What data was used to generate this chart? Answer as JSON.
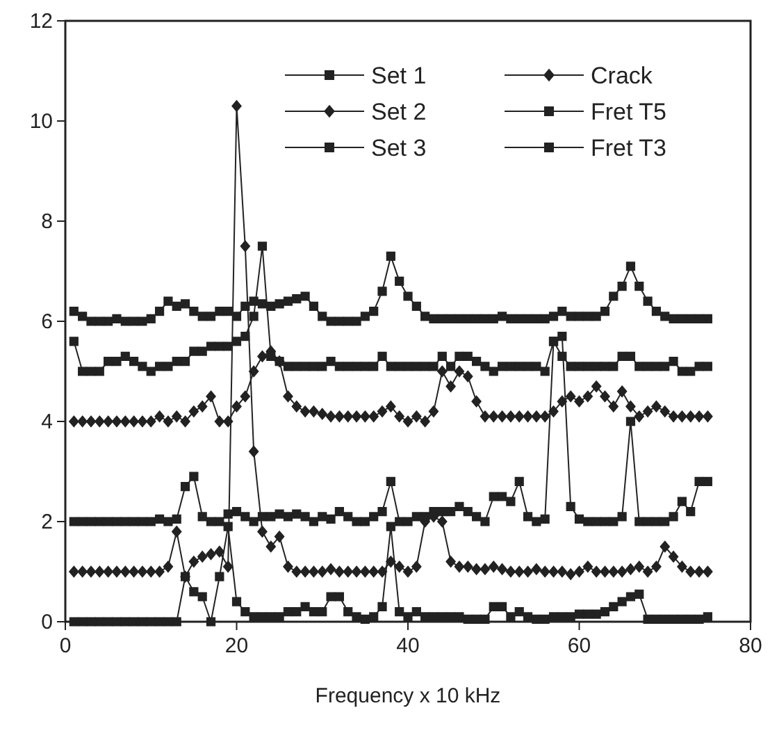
{
  "chart_data": {
    "type": "line",
    "xlabel": "Frequency x 10 kHz",
    "x": [
      1,
      2,
      3,
      4,
      5,
      6,
      7,
      8,
      9,
      10,
      11,
      12,
      13,
      14,
      15,
      16,
      17,
      18,
      19,
      20,
      21,
      22,
      23,
      24,
      25,
      26,
      27,
      28,
      29,
      30,
      31,
      32,
      33,
      34,
      35,
      36,
      37,
      38,
      39,
      40,
      41,
      42,
      43,
      44,
      45,
      46,
      47,
      48,
      49,
      50,
      51,
      52,
      53,
      54,
      55,
      56,
      57,
      58,
      59,
      60,
      61,
      62,
      63,
      64,
      65,
      66,
      67,
      68,
      69,
      70,
      71,
      72,
      73,
      74,
      75
    ],
    "xlim": [
      0,
      80
    ],
    "xticks": [
      0,
      20,
      40,
      60,
      80
    ],
    "ylim": [
      0,
      12
    ],
    "yticks": [
      0,
      2,
      4,
      6,
      8,
      10,
      12
    ],
    "legend": "top right",
    "line_style": "solid",
    "series": [
      {
        "name": "Set 1",
        "color": "#222222",
        "marker": "square",
        "values": [
          0,
          0,
          0,
          0,
          0,
          0,
          0,
          0,
          0,
          0,
          0,
          0,
          0,
          0.9,
          0.6,
          0.5,
          0,
          0.9,
          1.9,
          0.4,
          0.2,
          0.1,
          0.1,
          0.1,
          0.1,
          0.2,
          0.2,
          0.3,
          0.2,
          0.2,
          0.5,
          0.5,
          0.2,
          0.1,
          0.05,
          0.1,
          0.3,
          1.9,
          0.2,
          0.1,
          0.2,
          0.1,
          0.1,
          0.1,
          0.1,
          0.1,
          0.05,
          0.05,
          0.05,
          0.3,
          0.3,
          0.1,
          0.2,
          0.1,
          0.05,
          0.05,
          0.1,
          0.1,
          0.1,
          0.15,
          0.15,
          0.15,
          0.2,
          0.3,
          0.4,
          0.5,
          0.55,
          0.05,
          0.05,
          0.05,
          0.05,
          0.05,
          0.05,
          0.05,
          0.1
        ]
      },
      {
        "name": "Set 2",
        "color": "#222222",
        "marker": "diamond",
        "values": [
          1,
          1,
          1,
          1,
          1,
          1,
          1,
          1,
          1,
          1,
          1,
          1.1,
          1.8,
          0.9,
          1.2,
          1.3,
          1.35,
          1.4,
          1.1,
          10.3,
          7.5,
          3.4,
          1.8,
          1.5,
          1.7,
          1.1,
          1,
          1,
          1,
          1,
          1.05,
          1,
          1,
          1,
          1,
          1,
          1,
          1.2,
          1.1,
          1,
          1.1,
          2,
          2.1,
          2,
          1.2,
          1.1,
          1.1,
          1.05,
          1.05,
          1.1,
          1.05,
          1,
          1,
          1,
          1.05,
          1,
          1,
          1,
          0.95,
          1,
          1.1,
          1,
          1,
          1,
          1,
          1.05,
          1.1,
          1,
          1.1,
          1.5,
          1.3,
          1.1,
          1,
          1,
          1
        ]
      },
      {
        "name": "Set 3",
        "color": "#222222",
        "marker": "square",
        "values": [
          2,
          2,
          2,
          2,
          2,
          2,
          2,
          2,
          2,
          2,
          2.05,
          2,
          2.05,
          2.7,
          2.9,
          2.1,
          2,
          2,
          2.15,
          2.2,
          2.1,
          2,
          2.1,
          2.1,
          2.15,
          2.1,
          2.15,
          2.1,
          2,
          2.1,
          2.05,
          2.2,
          2.1,
          2,
          2,
          2.1,
          2.2,
          2.8,
          2,
          2,
          2.1,
          2.1,
          2.2,
          2.2,
          2.2,
          2.3,
          2.2,
          2.1,
          2,
          2.5,
          2.5,
          2.4,
          2.8,
          2.1,
          2,
          2.05,
          5.6,
          5.7,
          2.3,
          2.05,
          2,
          2,
          2,
          2,
          2.1,
          4,
          2,
          2,
          2,
          2,
          2.1,
          2.4,
          2.2,
          2.8,
          2.8
        ]
      },
      {
        "name": "Crack",
        "color": "#222222",
        "marker": "diamond",
        "values": [
          4,
          4,
          4,
          4,
          4,
          4,
          4,
          4,
          4,
          4,
          4.1,
          4,
          4.1,
          4,
          4.2,
          4.3,
          4.5,
          4,
          4,
          4.3,
          4.5,
          5,
          5.3,
          5.4,
          5.2,
          4.5,
          4.3,
          4.2,
          4.2,
          4.15,
          4.1,
          4.1,
          4.1,
          4.1,
          4.1,
          4.1,
          4.2,
          4.3,
          4.1,
          4,
          4.1,
          4,
          4.2,
          5,
          4.7,
          5,
          4.9,
          4.4,
          4.1,
          4.1,
          4.1,
          4.1,
          4.1,
          4.1,
          4.1,
          4.1,
          4.2,
          4.4,
          4.5,
          4.4,
          4.5,
          4.7,
          4.5,
          4.3,
          4.6,
          4.3,
          4.1,
          4.2,
          4.3,
          4.2,
          4.1,
          4.1,
          4.1,
          4.1,
          4.1
        ]
      },
      {
        "name": "Fret T5",
        "color": "#222222",
        "marker": "square",
        "values": [
          5.6,
          5,
          5,
          5,
          5.2,
          5.2,
          5.3,
          5.2,
          5.1,
          5,
          5.1,
          5.1,
          5.2,
          5.2,
          5.4,
          5.4,
          5.5,
          5.5,
          5.5,
          5.6,
          5.7,
          6.1,
          7.5,
          5.3,
          5.2,
          5.1,
          5.1,
          5.1,
          5.1,
          5.1,
          5.2,
          5.1,
          5.1,
          5.1,
          5.1,
          5.1,
          5.3,
          5.1,
          5.1,
          5.1,
          5.1,
          5.1,
          5.1,
          5.3,
          5.1,
          5.3,
          5.3,
          5.2,
          5.1,
          5,
          5.1,
          5.1,
          5.1,
          5.1,
          5.1,
          5,
          5.6,
          5.3,
          5.1,
          5.1,
          5.1,
          5.1,
          5.1,
          5.1,
          5.3,
          5.3,
          5.1,
          5.1,
          5.1,
          5.1,
          5.2,
          5,
          5,
          5.1,
          5.1
        ]
      },
      {
        "name": "Fret T3",
        "color": "#222222",
        "marker": "square",
        "values": [
          6.2,
          6.1,
          6,
          6,
          6,
          6.05,
          6,
          6,
          6,
          6.05,
          6.2,
          6.4,
          6.3,
          6.35,
          6.2,
          6.1,
          6.1,
          6.2,
          6.2,
          6.1,
          6.3,
          6.4,
          6.35,
          6.3,
          6.35,
          6.4,
          6.45,
          6.5,
          6.3,
          6.1,
          6,
          6,
          6,
          6,
          6.1,
          6.2,
          6.6,
          7.3,
          6.8,
          6.5,
          6.3,
          6.1,
          6.05,
          6.05,
          6.05,
          6.05,
          6.05,
          6.05,
          6.05,
          6.05,
          6.1,
          6.05,
          6.05,
          6.05,
          6.05,
          6.05,
          6.1,
          6.2,
          6.1,
          6.1,
          6.1,
          6.1,
          6.2,
          6.5,
          6.7,
          7.1,
          6.7,
          6.4,
          6.2,
          6.1,
          6.05,
          6.05,
          6.05,
          6.05,
          6.05
        ]
      }
    ]
  }
}
